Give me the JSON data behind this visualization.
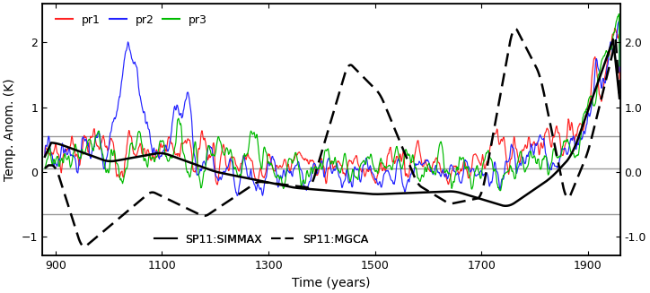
{
  "xlim": [
    875,
    1960
  ],
  "ylim": [
    -1.3,
    2.6
  ],
  "yticks_left": [
    -1.0,
    0.0,
    1.0,
    2.0
  ],
  "yticks_right": [
    -1.0,
    0.0,
    1.0,
    2.0
  ],
  "xticks": [
    900,
    1100,
    1300,
    1500,
    1700,
    1900
  ],
  "xlabel": "Time (years)",
  "ylabel": "Temp. Anom. (K)",
  "hlines": [
    0.55,
    0.05,
    -0.65
  ],
  "hline_color": "#999999",
  "pr1_color": "#ff2222",
  "pr2_color": "#2222ff",
  "pr3_color": "#00bb00",
  "black_color": "#000000",
  "axis_fontsize": 10,
  "tick_fontsize": 9,
  "legend_fontsize": 9
}
